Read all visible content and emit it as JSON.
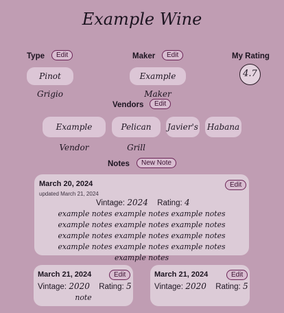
{
  "wine": {
    "name": "Example Wine",
    "type_label": "Type",
    "type_value": "Pinot Grigio",
    "maker_label": "Maker",
    "maker_value": "Example Maker",
    "rating_label": "My Rating",
    "rating_value": "4.7",
    "edit_label": "Edit"
  },
  "vendors": {
    "label": "Vendors",
    "edit_label": "Edit",
    "items": [
      "Example Vendor",
      "Pelican Grill",
      "Javier's",
      "Habana"
    ]
  },
  "notes": {
    "label": "Notes",
    "new_label": "New Note",
    "edit_label": "Edit",
    "vintage_label": "Vintage:",
    "rating_label": "Rating:",
    "items": [
      {
        "date": "March 20, 2024",
        "updated": "updated March 21, 2024",
        "vintage": "2024",
        "rating": "4",
        "text": "example notes example notes example notes example notes example notes example notes example notes example notes example notes example notes example notes example notes example notes"
      },
      {
        "date": "March 21, 2024",
        "vintage": "2020",
        "rating": "5",
        "text": "note"
      },
      {
        "date": "March 21, 2024",
        "vintage": "2020",
        "rating": "5",
        "text": ""
      }
    ]
  }
}
